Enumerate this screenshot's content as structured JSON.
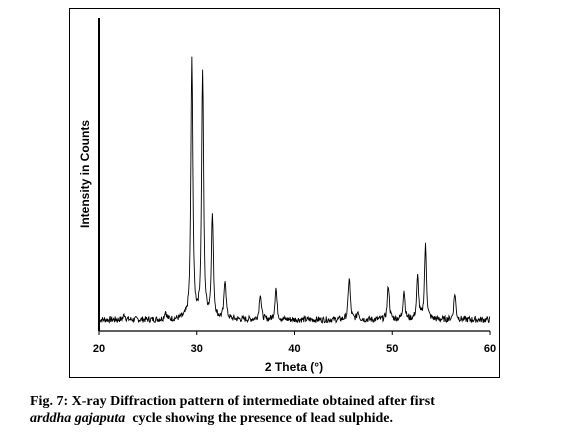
{
  "chart_data": {
    "type": "line",
    "title": "",
    "xlabel": "2 Theta (°)",
    "ylabel": "Intensity in Counts",
    "xlim": [
      20,
      60
    ],
    "ylim": [
      0,
      100
    ],
    "x_ticks": [
      "20",
      "30",
      "40",
      "50",
      "60"
    ],
    "y_ticks_labeled": false,
    "grid": false,
    "legend": "none",
    "baseline": 2,
    "peaks": [
      {
        "x": 22.6,
        "y": 4
      },
      {
        "x": 26.8,
        "y": 5
      },
      {
        "x": 29.5,
        "y": 100
      },
      {
        "x": 30.6,
        "y": 96
      },
      {
        "x": 31.6,
        "y": 41
      },
      {
        "x": 32.9,
        "y": 17
      },
      {
        "x": 36.5,
        "y": 12
      },
      {
        "x": 38.1,
        "y": 14
      },
      {
        "x": 45.6,
        "y": 18
      },
      {
        "x": 46.5,
        "y": 5
      },
      {
        "x": 49.6,
        "y": 15
      },
      {
        "x": 51.2,
        "y": 13
      },
      {
        "x": 52.6,
        "y": 18
      },
      {
        "x": 53.4,
        "y": 30
      },
      {
        "x": 56.4,
        "y": 12
      }
    ]
  },
  "caption": {
    "prefix": "Fig. 7: X-ray Diffraction pattern of intermediate obtained after first",
    "italic": "arddha gajaputa",
    "suffix": "  cycle showing the presence of lead sulphide."
  }
}
